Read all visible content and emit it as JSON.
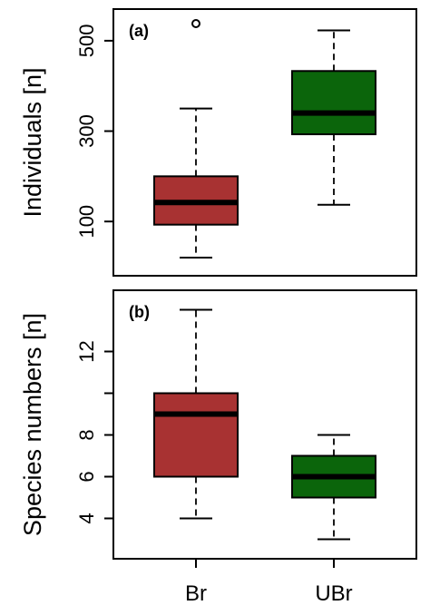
{
  "chart_data": [
    {
      "type": "boxplot",
      "panel_label": "(a)",
      "ylabel": "Individuals [n]",
      "categories": [
        "Br",
        "UBr"
      ],
      "ylim": [
        0,
        550
      ],
      "yticks": [
        100,
        300,
        500
      ],
      "boxes": [
        {
          "name": "Br",
          "color": "#a83232",
          "whisker_low": 20,
          "q1": 93,
          "median": 142,
          "q3": 200,
          "whisker_high": 350,
          "outliers": [
            538
          ]
        },
        {
          "name": "UBr",
          "color": "#0b650b",
          "whisker_low": 137,
          "q1": 293,
          "median": 340,
          "q3": 433,
          "whisker_high": 523,
          "outliers": []
        }
      ]
    },
    {
      "type": "boxplot",
      "panel_label": "(b)",
      "ylabel": "Species numbers [n]",
      "categories": [
        "Br",
        "UBr"
      ],
      "ylim": [
        2.5,
        14.5
      ],
      "yticks": [
        4,
        6,
        8,
        10,
        12
      ],
      "ytick_labels": [
        "4",
        "6",
        "8",
        "",
        "12"
      ],
      "boxes": [
        {
          "name": "Br",
          "color": "#a83232",
          "whisker_low": 4,
          "q1": 6,
          "median": 9,
          "q3": 10,
          "whisker_high": 14,
          "outliers": []
        },
        {
          "name": "UBr",
          "color": "#0b650b",
          "whisker_low": 3,
          "q1": 5,
          "median": 6,
          "q3": 7,
          "whisker_high": 8,
          "outliers": []
        }
      ]
    }
  ]
}
